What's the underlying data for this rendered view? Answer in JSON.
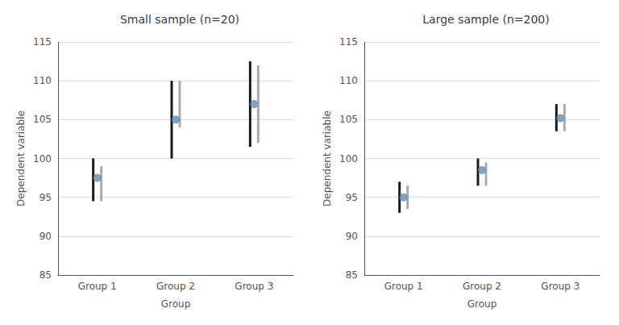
{
  "chart_data": [
    {
      "type": "scatter",
      "title": "Small sample (n=20)",
      "xlabel": "Group",
      "ylabel": "Dependent variable",
      "categories": [
        "Group 1",
        "Group 2",
        "Group 3"
      ],
      "ylim": [
        85,
        115
      ],
      "yticks": [
        85,
        90,
        95,
        100,
        105,
        110,
        115
      ],
      "grid": true,
      "series": [
        {
          "type": "range",
          "color": "#1a1a1a",
          "values": [
            [
              94.5,
              100.0
            ],
            [
              100.0,
              110.0
            ],
            [
              101.5,
              112.5
            ]
          ]
        },
        {
          "type": "range",
          "color": "#aaaaaa",
          "values": [
            [
              94.5,
              99.0
            ],
            [
              104.0,
              110.0
            ],
            [
              102.0,
              112.0
            ]
          ]
        },
        {
          "type": "scatter",
          "color": "#5b8db8",
          "values": [
            97.5,
            105.0,
            107.0
          ]
        }
      ]
    },
    {
      "type": "scatter",
      "title": "Large sample (n=200)",
      "xlabel": "Group",
      "ylabel": "Dependent variable",
      "categories": [
        "Group 1",
        "Group 2",
        "Group 3"
      ],
      "ylim": [
        85,
        115
      ],
      "yticks": [
        85,
        90,
        95,
        100,
        105,
        110,
        115
      ],
      "grid": true,
      "series": [
        {
          "type": "range",
          "color": "#1a1a1a",
          "values": [
            [
              93.0,
              97.0
            ],
            [
              96.5,
              100.0
            ],
            [
              103.5,
              107.0
            ]
          ]
        },
        {
          "type": "range",
          "color": "#aaaaaa",
          "values": [
            [
              93.5,
              96.5
            ],
            [
              96.5,
              99.5
            ],
            [
              103.5,
              107.0
            ]
          ]
        },
        {
          "type": "scatter",
          "color": "#5b8db8",
          "values": [
            95.0,
            98.5,
            105.2
          ]
        }
      ]
    }
  ]
}
